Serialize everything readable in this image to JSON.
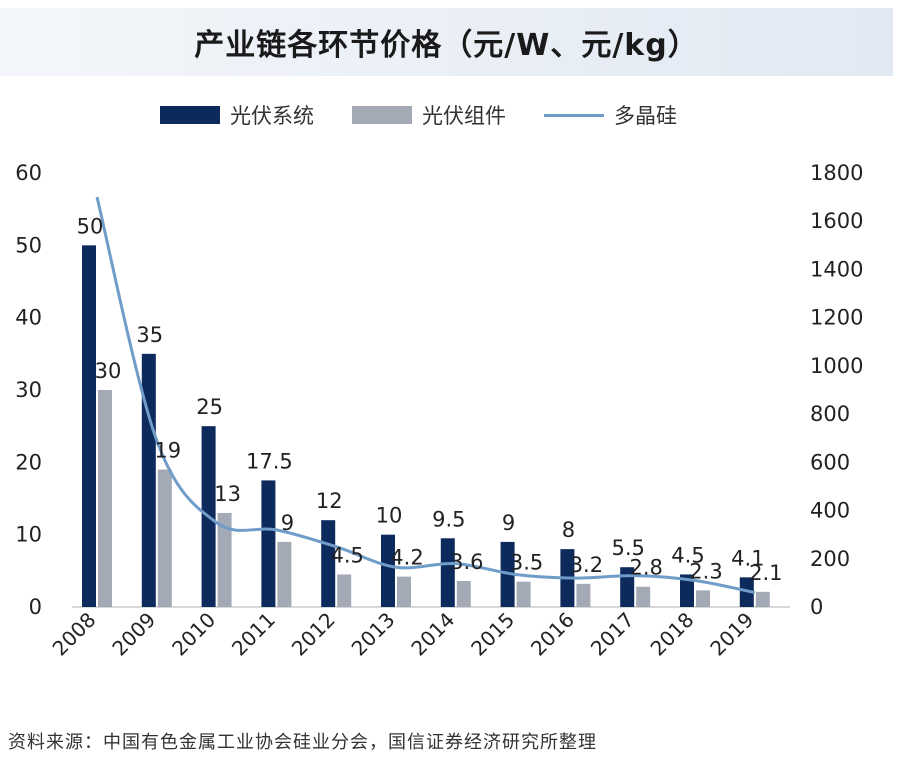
{
  "chart_data": {
    "type": "bar",
    "title": "产业链各环节价格（元/W、元/kg）",
    "categories": [
      "2008",
      "2009",
      "2010",
      "2011",
      "2012",
      "2013",
      "2014",
      "2015",
      "2016",
      "2017",
      "2018",
      "2019"
    ],
    "series": [
      {
        "name": "光伏系统",
        "type": "bar",
        "axis": "left",
        "color": "#0d2a5c",
        "values": [
          50,
          35,
          25,
          17.5,
          12,
          10,
          9.5,
          9,
          8,
          5.5,
          4.5,
          4.1
        ],
        "labels": [
          "50",
          "35",
          "25",
          "17.5",
          "12",
          "10",
          "9.5",
          "9",
          "8",
          "5.5",
          "4.5",
          "4.1"
        ]
      },
      {
        "name": "光伏组件",
        "type": "bar",
        "axis": "left",
        "color": "#a3aab6",
        "values": [
          30,
          19,
          13,
          9,
          4.5,
          4.2,
          3.6,
          3.5,
          3.2,
          2.8,
          2.3,
          2.1
        ],
        "labels": [
          "30",
          "19",
          "13",
          "9",
          "4.5",
          "4.2",
          "3.6",
          "3.5",
          "3.2",
          "2.8",
          "2.3",
          "2.1"
        ]
      },
      {
        "name": "多晶硅",
        "type": "line",
        "axis": "right",
        "color": "#6f9cc9",
        "values": [
          1700,
          690,
          350,
          320,
          250,
          165,
          180,
          135,
          120,
          130,
          110,
          60
        ]
      }
    ],
    "yleft": {
      "min": 0,
      "max": 60,
      "ticks": [
        "0",
        "10",
        "20",
        "30",
        "40",
        "50",
        "60"
      ]
    },
    "yright": {
      "min": 0,
      "max": 1800,
      "ticks": [
        "0",
        "200",
        "400",
        "600",
        "800",
        "1000",
        "1200",
        "1400",
        "1600",
        "1800"
      ]
    },
    "grid": false,
    "legend_position": "top"
  },
  "footer": "资料来源：中国有色金属工业协会硅业分会，国信证券经济研究所整理"
}
